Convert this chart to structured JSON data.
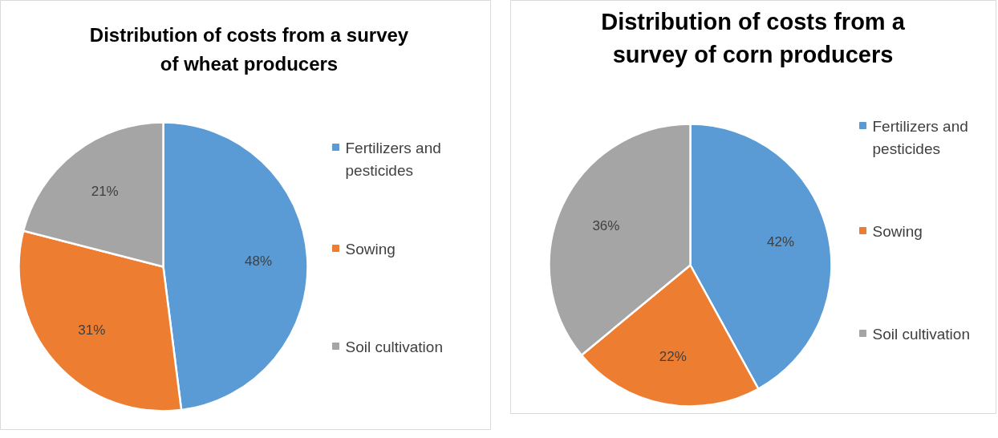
{
  "chart_data": [
    {
      "type": "pie",
      "title": "Distribution of costs from a survey of wheat producers",
      "categories": [
        "Fertilizers and pesticides",
        "Sowing",
        "Soil cultivation"
      ],
      "values": [
        48,
        31,
        21
      ],
      "colors": [
        "#5b9bd5",
        "#ed7d31",
        "#a5a5a5"
      ],
      "value_labels": [
        "48%",
        "31%",
        "21%"
      ],
      "legend": "right"
    },
    {
      "type": "pie",
      "title": "Distribution of costs from a survey of corn producers",
      "categories": [
        "Fertilizers and pesticides",
        "Sowing",
        "Soil cultivation"
      ],
      "values": [
        42,
        22,
        36
      ],
      "colors": [
        "#5b9bd5",
        "#ed7d31",
        "#a5a5a5"
      ],
      "value_labels": [
        "42%",
        "22%",
        "36%"
      ],
      "legend": "right"
    }
  ]
}
